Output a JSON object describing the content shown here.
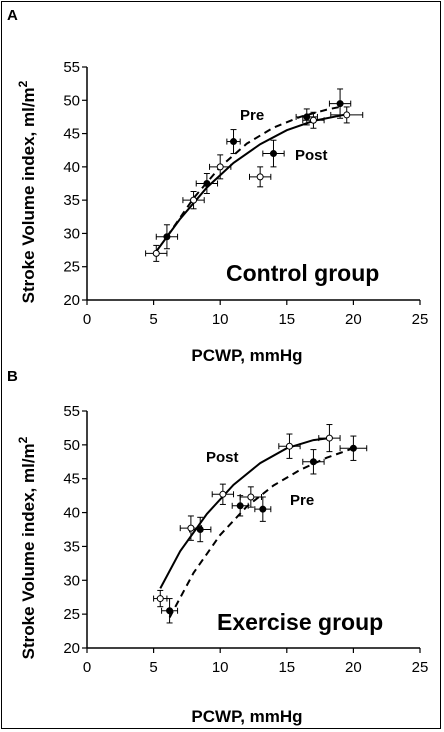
{
  "chart_data": [
    {
      "type": "scatter",
      "panel_label": "A",
      "group_label": "Control group",
      "xlabel": "PCWP, mmHg",
      "ylabel_main": "Stroke Volume index, ml/m",
      "ylabel_sup": "2",
      "xlim": [
        0,
        25
      ],
      "ylim": [
        20,
        55
      ],
      "xticks": [
        0,
        5,
        10,
        15,
        20,
        25
      ],
      "yticks": [
        20,
        25,
        30,
        35,
        40,
        45,
        50,
        55
      ],
      "grid": false,
      "series": [
        {
          "name": "Pre",
          "marker": "filled",
          "line": "dashed",
          "points": [
            {
              "x": 6.0,
              "y": 29.5,
              "xerr": 0.8,
              "yerr": 1.8
            },
            {
              "x": 9.0,
              "y": 37.5,
              "xerr": 0.8,
              "yerr": 1.5
            },
            {
              "x": 11.0,
              "y": 43.8,
              "xerr": 0.5,
              "yerr": 1.8
            },
            {
              "x": 14.0,
              "y": 42.0,
              "xerr": 0.8,
              "yerr": 2.0
            },
            {
              "x": 16.5,
              "y": 47.5,
              "xerr": 0.8,
              "yerr": 1.2
            },
            {
              "x": 19.0,
              "y": 49.5,
              "xerr": 0.8,
              "yerr": 2.2
            }
          ],
          "curve": {
            "x": [
              6,
              8,
              10,
              12,
              14,
              16,
              18,
              19
            ],
            "y": [
              29.5,
              35.3,
              40.0,
              43.5,
              45.9,
              47.5,
              48.6,
              49.0
            ]
          }
        },
        {
          "name": "Post",
          "marker": "open",
          "line": "solid",
          "points": [
            {
              "x": 5.2,
              "y": 27.0,
              "xerr": 0.8,
              "yerr": 1.2
            },
            {
              "x": 8.0,
              "y": 35.0,
              "xerr": 0.8,
              "yerr": 1.3
            },
            {
              "x": 10.0,
              "y": 40.0,
              "xerr": 0.8,
              "yerr": 1.8
            },
            {
              "x": 13.0,
              "y": 38.5,
              "xerr": 0.8,
              "yerr": 1.5
            },
            {
              "x": 17.0,
              "y": 47.0,
              "xerr": 0.8,
              "yerr": 1.2
            },
            {
              "x": 19.5,
              "y": 47.8,
              "xerr": 1.2,
              "yerr": 1.2
            }
          ],
          "curve": {
            "x": [
              5.2,
              7,
              9,
              11,
              13,
              15,
              17,
              19.5
            ],
            "y": [
              27.3,
              32.2,
              36.9,
              40.6,
              43.4,
              45.5,
              46.9,
              47.9
            ]
          }
        }
      ]
    },
    {
      "type": "scatter",
      "panel_label": "B",
      "group_label": "Exercise group",
      "xlabel": "PCWP, mmHg",
      "ylabel_main": "Stroke Volume index, ml/m",
      "ylabel_sup": "2",
      "xlim": [
        0,
        25
      ],
      "ylim": [
        20,
        55
      ],
      "xticks": [
        0,
        5,
        10,
        15,
        20,
        25
      ],
      "yticks": [
        20,
        25,
        30,
        35,
        40,
        45,
        50,
        55
      ],
      "grid": false,
      "series": [
        {
          "name": "Pre",
          "marker": "filled",
          "line": "dashed",
          "points": [
            {
              "x": 6.2,
              "y": 25.5,
              "xerr": 0.6,
              "yerr": 1.8
            },
            {
              "x": 8.5,
              "y": 37.5,
              "xerr": 0.8,
              "yerr": 1.8
            },
            {
              "x": 11.5,
              "y": 41.0,
              "xerr": 0.6,
              "yerr": 1.5
            },
            {
              "x": 13.2,
              "y": 40.5,
              "xerr": 0.6,
              "yerr": 1.8
            },
            {
              "x": 17.0,
              "y": 47.5,
              "xerr": 0.8,
              "yerr": 1.8
            },
            {
              "x": 20.0,
              "y": 49.5,
              "xerr": 1.0,
              "yerr": 1.8
            }
          ],
          "curve": {
            "x": [
              6.2,
              8,
              10,
              12,
              14,
              16,
              18,
              20
            ],
            "y": [
              24.5,
              31.1,
              36.7,
              40.9,
              44.0,
              46.3,
              48.1,
              49.5
            ]
          }
        },
        {
          "name": "Post",
          "marker": "open",
          "line": "solid",
          "points": [
            {
              "x": 5.5,
              "y": 27.3,
              "xerr": 0.5,
              "yerr": 1.2
            },
            {
              "x": 7.8,
              "y": 37.7,
              "xerr": 0.8,
              "yerr": 1.8
            },
            {
              "x": 10.2,
              "y": 42.7,
              "xerr": 0.8,
              "yerr": 1.5
            },
            {
              "x": 12.3,
              "y": 42.3,
              "xerr": 0.8,
              "yerr": 1.5
            },
            {
              "x": 15.2,
              "y": 49.8,
              "xerr": 0.8,
              "yerr": 1.8
            },
            {
              "x": 18.2,
              "y": 51.0,
              "xerr": 0.8,
              "yerr": 2.0
            }
          ],
          "curve": {
            "x": [
              5.5,
              7,
              9,
              11,
              13,
              15,
              17,
              18.2
            ],
            "y": [
              28.8,
              34.3,
              39.8,
              44.1,
              47.3,
              49.5,
              50.7,
              51.0
            ]
          }
        }
      ]
    }
  ]
}
